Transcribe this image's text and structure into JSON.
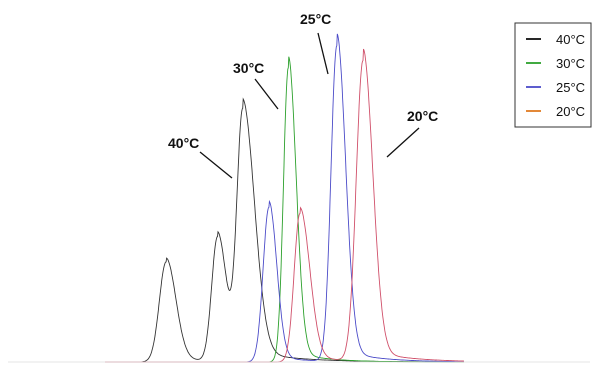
{
  "chart_data": {
    "type": "line",
    "title": "",
    "xlabel": "",
    "ylabel": "",
    "grid": false,
    "legend_position": "top-right",
    "xlim": [
      0,
      600
    ],
    "ylim": [
      0,
      100
    ],
    "series": [
      {
        "name": "40°C",
        "color": "#333333",
        "peaks": [
          {
            "center": 163,
            "height": 33,
            "left_width": 7,
            "right_width": 10
          },
          {
            "center": 216,
            "height": 41,
            "left_width": 6,
            "right_width": 9
          },
          {
            "center": 242,
            "height": 82,
            "left_width": 6,
            "right_width": 12
          }
        ]
      },
      {
        "name": "30°C",
        "color": "#2ca02c",
        "peaks": [
          {
            "center": 289,
            "height": 97,
            "left_width": 5,
            "right_width": 8
          }
        ]
      },
      {
        "name": "25°C",
        "color": "#4b4bc8",
        "peaks": [
          {
            "center": 269,
            "height": 51,
            "left_width": 6,
            "right_width": 8
          },
          {
            "center": 339,
            "height": 104,
            "left_width": 6,
            "right_width": 9
          }
        ]
      },
      {
        "name": "20°C",
        "color": "#d0506a",
        "peaks": [
          {
            "center": 301,
            "height": 49,
            "left_width": 6,
            "right_width": 10
          },
          {
            "center": 366,
            "height": 99,
            "left_width": 7,
            "right_width": 10
          }
        ]
      }
    ],
    "annotations": [
      {
        "text": "40°C",
        "series": "40°C"
      },
      {
        "text": "30°C",
        "series": "30°C"
      },
      {
        "text": "25°C",
        "series": "25°C"
      },
      {
        "text": "20°C",
        "series": "20°C"
      }
    ],
    "legend": [
      {
        "label": "40°C",
        "color": "#111111"
      },
      {
        "label": "30°C",
        "color": "#2ca02c"
      },
      {
        "label": "25°C",
        "color": "#4b4bc8"
      },
      {
        "label": "20°C",
        "color": "#e07b22"
      }
    ]
  }
}
